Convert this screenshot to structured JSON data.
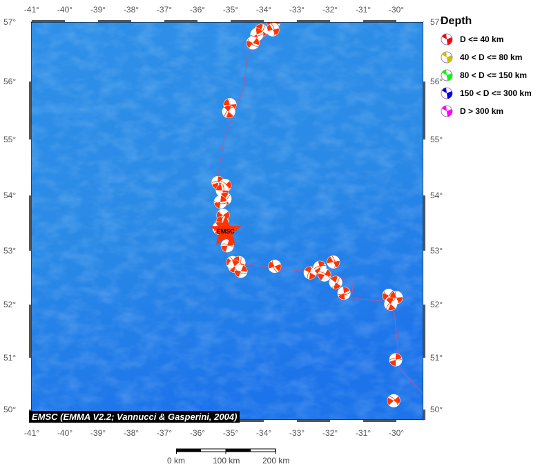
{
  "map": {
    "lon_range": [
      -41,
      -29.2
    ],
    "lat_range": [
      49.8,
      57
    ],
    "lon_ticks": [
      -41,
      -40,
      -39,
      -38,
      -37,
      -36,
      -35,
      -34,
      -33,
      -32,
      -31,
      -30
    ],
    "lat_ticks": [
      50,
      51,
      52,
      53,
      54,
      55,
      56,
      57
    ],
    "tick_suffix": "°",
    "ocean_color": "#2a8ae6",
    "plate_boundary_color": "#b05aa0",
    "plate_boundary": [
      [
        -33.7,
        57
      ],
      [
        -34.0,
        56.7
      ],
      [
        -34.5,
        56.45
      ],
      [
        -34.6,
        55.9
      ],
      [
        -35.2,
        55.0
      ],
      [
        -35.4,
        54.3
      ],
      [
        -35.3,
        53.4
      ],
      [
        -35.05,
        52.8
      ],
      [
        -33.7,
        52.68
      ],
      [
        -32.8,
        52.62
      ],
      [
        -31.3,
        52.45
      ],
      [
        -31.35,
        52.12
      ],
      [
        -30.2,
        52.05
      ],
      [
        -30.05,
        51.8
      ],
      [
        -29.9,
        50.8
      ],
      [
        -29.2,
        50.3
      ]
    ],
    "star": {
      "lon": -35.15,
      "lat": 53.35,
      "label": "EMSC",
      "color": "#ff3300"
    },
    "events": [
      [
        -33.71,
        56.99
      ],
      [
        -33.73,
        56.87
      ],
      [
        -34.08,
        56.86
      ],
      [
        -34.21,
        56.79
      ],
      [
        -34.33,
        56.65
      ],
      [
        -35.02,
        55.6
      ],
      [
        -35.06,
        55.48
      ],
      [
        -35.38,
        54.23
      ],
      [
        -35.17,
        54.18
      ],
      [
        -35.25,
        54.09
      ],
      [
        -35.17,
        53.94
      ],
      [
        -35.31,
        53.88
      ],
      [
        -35.23,
        53.64
      ],
      [
        -35.25,
        53.51
      ],
      [
        -35.35,
        53.41
      ],
      [
        -35.1,
        53.09
      ],
      [
        -34.94,
        52.78
      ],
      [
        -34.75,
        52.78
      ],
      [
        -34.88,
        52.71
      ],
      [
        -34.69,
        52.62
      ],
      [
        -33.67,
        52.71
      ],
      [
        -32.6,
        52.59
      ],
      [
        -32.31,
        52.69
      ],
      [
        -32.17,
        52.55
      ],
      [
        -31.9,
        52.79
      ],
      [
        -31.83,
        52.41
      ],
      [
        -31.58,
        52.21
      ],
      [
        -30.23,
        52.17
      ],
      [
        -30.0,
        52.13
      ],
      [
        -30.17,
        52.01
      ],
      [
        -30.02,
        50.96
      ],
      [
        -30.08,
        50.17
      ]
    ],
    "event_color": "#ff3300"
  },
  "legend": {
    "title": "Depth",
    "items": [
      {
        "label": "D <= 40 km",
        "color": "#ff0000"
      },
      {
        "label": "40 < D <= 80 km",
        "color": "#c8c000"
      },
      {
        "label": "80 < D <= 150 km",
        "color": "#00ff00"
      },
      {
        "label": "150 < D <= 300 km",
        "color": "#0000e0"
      },
      {
        "label": "D > 300 km",
        "color": "#ff00ff"
      }
    ]
  },
  "credit": "EMSC (EMMA V2.2; Vannucci & Gasperini, 2004)",
  "scalebar": {
    "labels": [
      "0 km",
      "100 km",
      "200 km"
    ]
  }
}
